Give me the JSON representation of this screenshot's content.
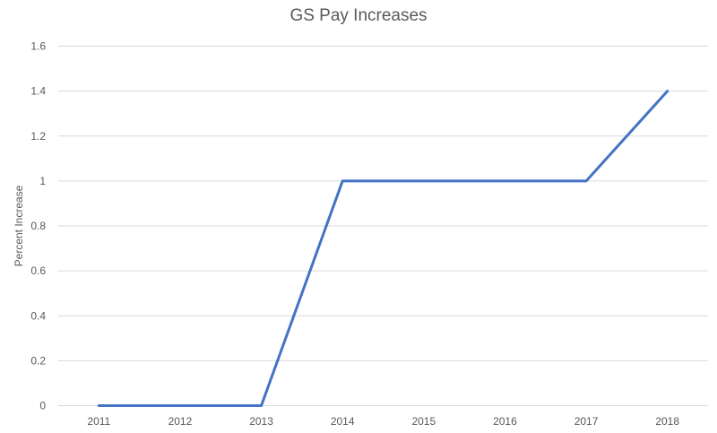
{
  "chart_data": {
    "type": "line",
    "title": "GS Pay Increases",
    "xlabel": "",
    "ylabel": "Percent Increase",
    "categories": [
      "2011",
      "2012",
      "2013",
      "2014",
      "2015",
      "2016",
      "2017",
      "2018"
    ],
    "series": [
      {
        "values": [
          0,
          0,
          0,
          1,
          1,
          1,
          1,
          1.4
        ],
        "color": "#4472c4"
      }
    ],
    "ylim": [
      0,
      1.6
    ],
    "yticks": [
      "0",
      "0.2",
      "0.4",
      "0.6",
      "0.8",
      "1",
      "1.2",
      "1.4",
      "1.6"
    ],
    "grid": true,
    "legend": "none"
  }
}
